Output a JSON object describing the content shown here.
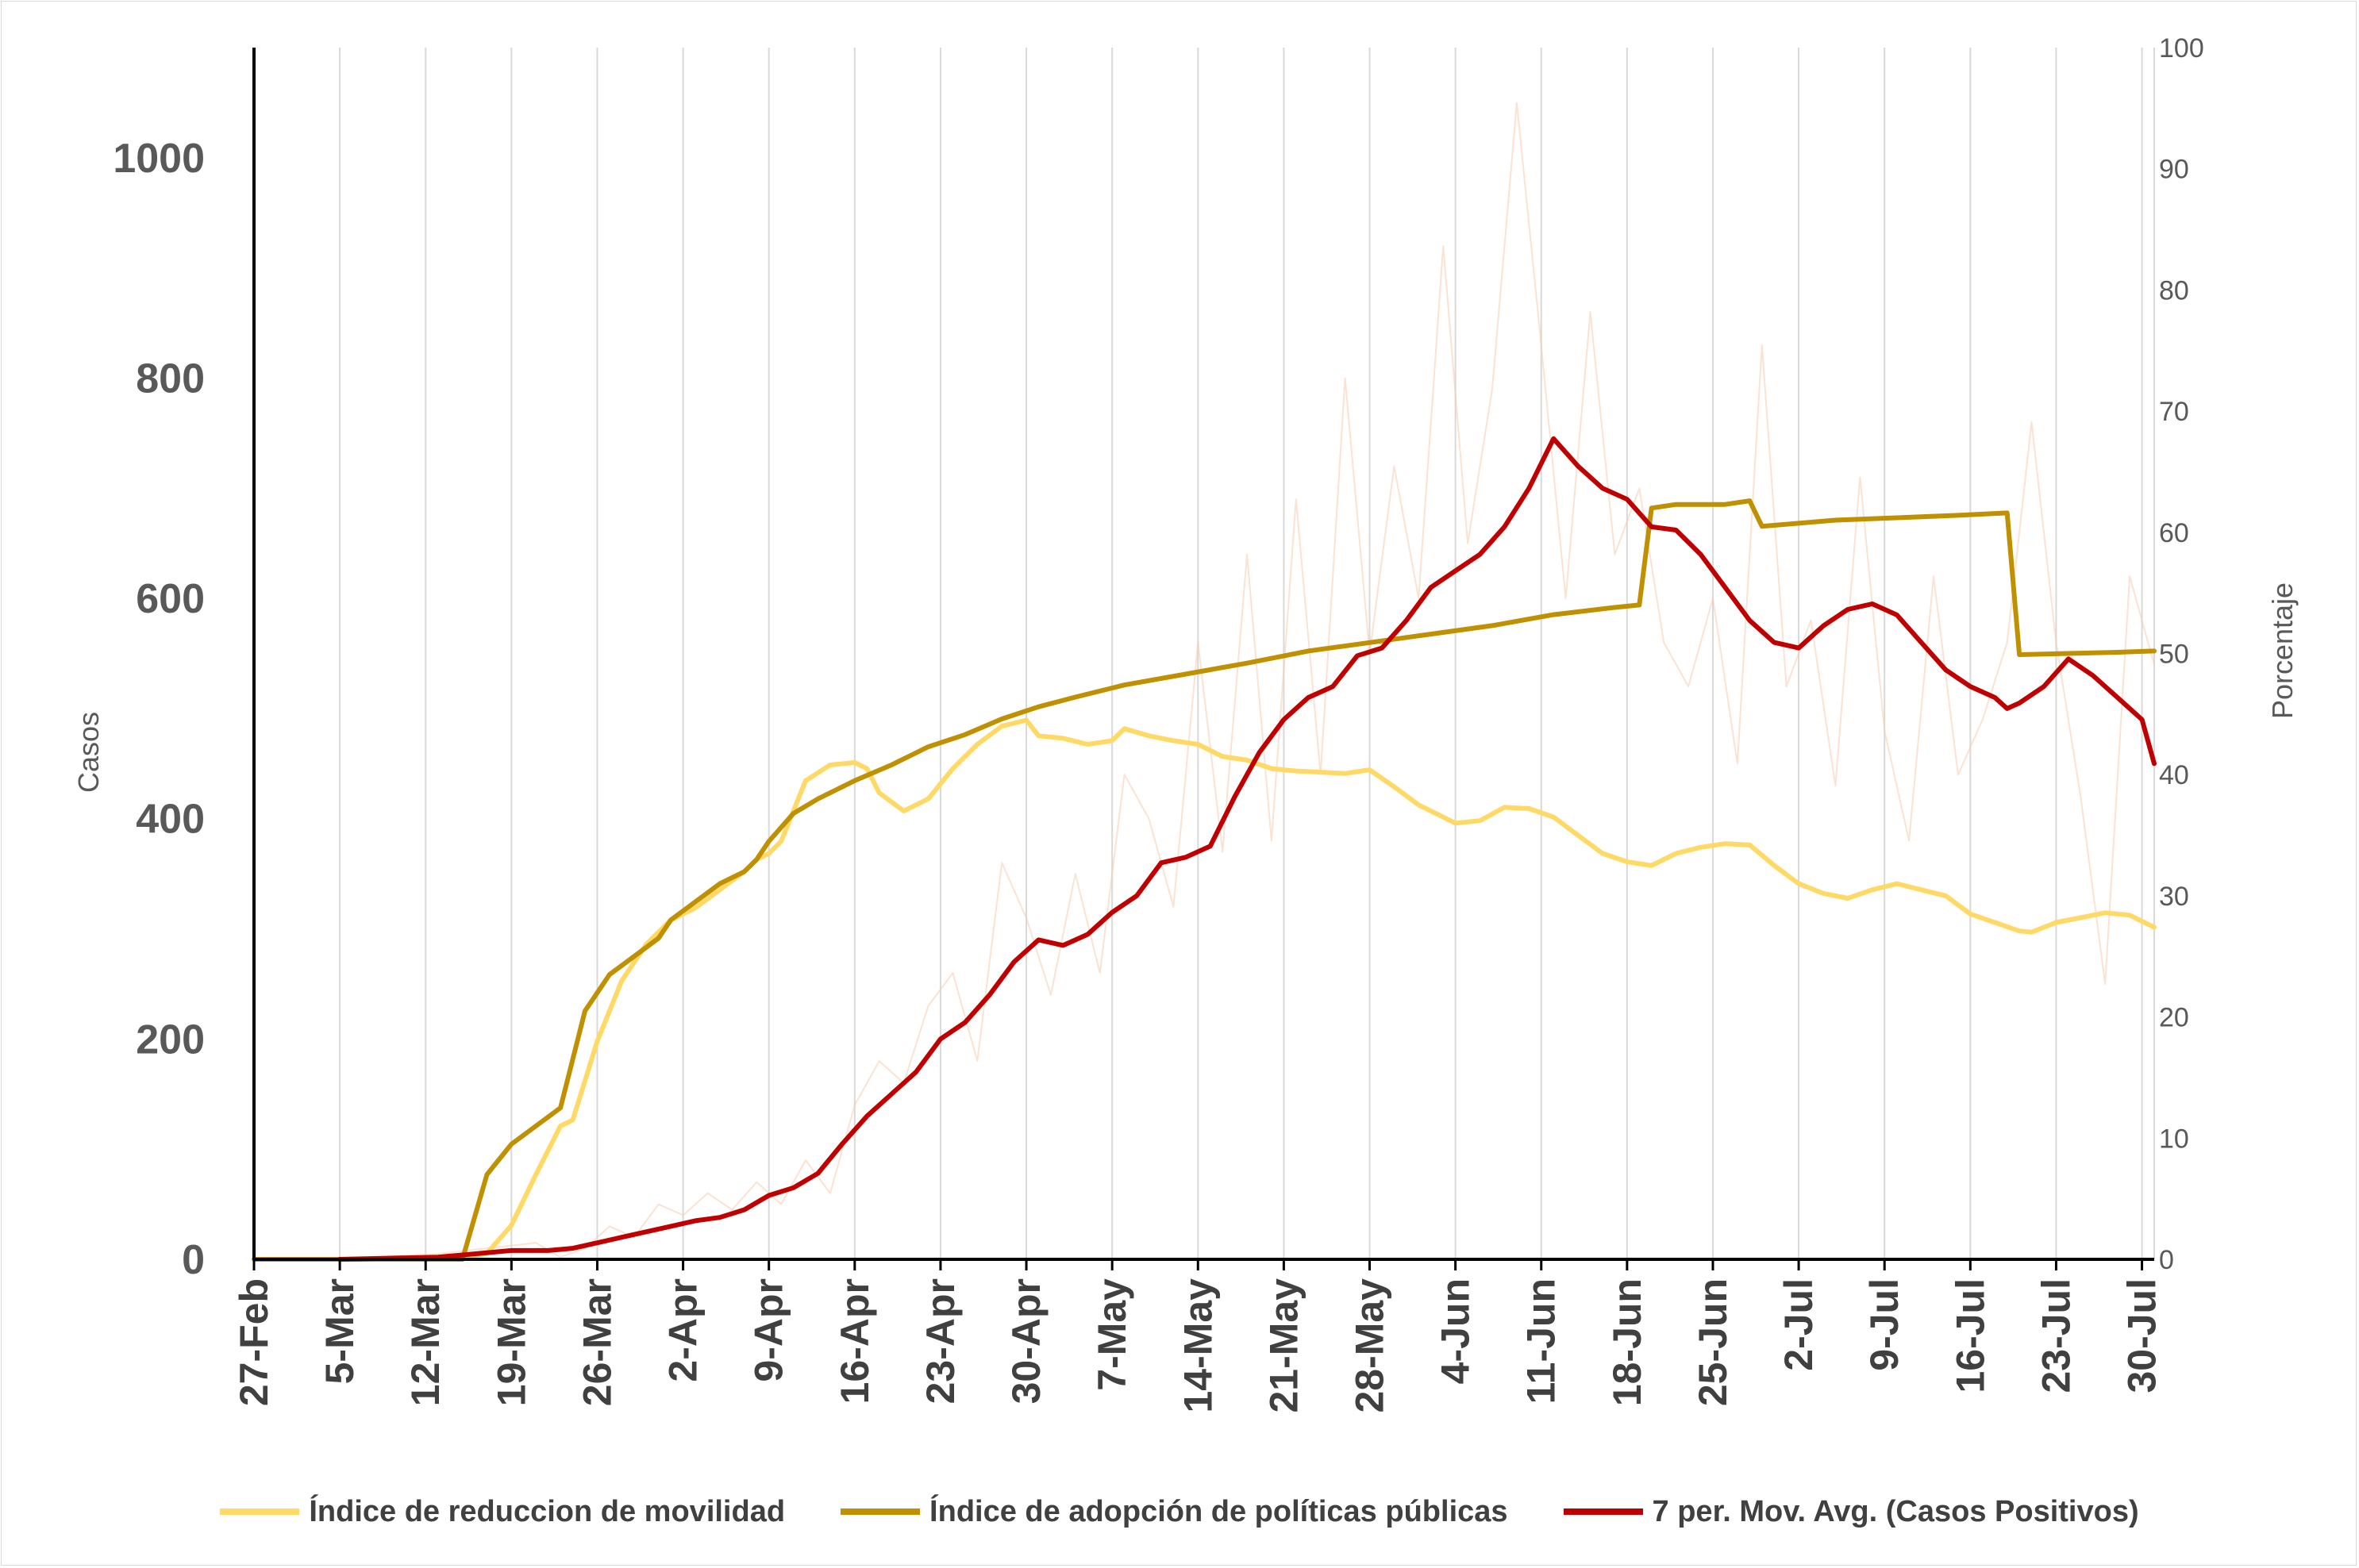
{
  "chart_data": {
    "type": "line",
    "title": "",
    "y_left": {
      "label": "Casos",
      "ticks": [
        "0",
        "200",
        "400",
        "600",
        "800",
        "1000"
      ],
      "range": [
        0,
        1100
      ]
    },
    "y_right": {
      "label": "Porcentaje",
      "ticks": [
        "0",
        "10",
        "20",
        "30",
        "40",
        "50",
        "60",
        "70",
        "80",
        "90",
        "100"
      ],
      "range": [
        0,
        100
      ]
    },
    "x": {
      "ticks": [
        "27-Feb",
        "5-Mar",
        "12-Mar",
        "19-Mar",
        "26-Mar",
        "2-Apr",
        "9-Apr",
        "16-Apr",
        "23-Apr",
        "30-Apr",
        "7-May",
        "14-May",
        "21-May",
        "28-May",
        "4-Jun",
        "11-Jun",
        "18-Jun",
        "25-Jun",
        "2-Jul",
        "9-Jul",
        "16-Jul",
        "23-Jul",
        "30-Jul"
      ],
      "range": [
        "2020-02-27",
        "2020-07-31"
      ]
    },
    "gridlines": "vertical",
    "legend_position": "bottom",
    "series": [
      {
        "name": "Índice de reduccion de movilidad",
        "axis": "right",
        "color": "#ffd966",
        "points": [
          [
            "2020-03-14",
            0
          ],
          [
            "2020-03-17",
            0.5
          ],
          [
            "2020-03-19",
            2.8
          ],
          [
            "2020-03-21",
            7
          ],
          [
            "2020-03-23",
            11
          ],
          [
            "2020-03-24",
            11.5
          ],
          [
            "2020-03-26",
            18
          ],
          [
            "2020-03-28",
            23
          ],
          [
            "2020-03-30",
            26
          ],
          [
            "2020-04-01",
            28
          ],
          [
            "2020-04-03",
            29
          ],
          [
            "2020-04-05",
            30.5
          ],
          [
            "2020-04-07",
            32
          ],
          [
            "2020-04-08",
            33
          ],
          [
            "2020-04-09",
            33.5
          ],
          [
            "2020-04-10",
            34.5
          ],
          [
            "2020-04-11",
            37
          ],
          [
            "2020-04-12",
            39.5
          ],
          [
            "2020-04-14",
            40.8
          ],
          [
            "2020-04-16",
            41
          ],
          [
            "2020-04-17",
            40.5
          ],
          [
            "2020-04-18",
            38.5
          ],
          [
            "2020-04-20",
            37
          ],
          [
            "2020-04-22",
            38
          ],
          [
            "2020-04-24",
            40.5
          ],
          [
            "2020-04-26",
            42.5
          ],
          [
            "2020-04-28",
            44
          ],
          [
            "2020-04-30",
            44.5
          ],
          [
            "2020-05-01",
            43.2
          ],
          [
            "2020-05-03",
            43
          ],
          [
            "2020-05-05",
            42.5
          ],
          [
            "2020-05-07",
            42.8
          ],
          [
            "2020-05-08",
            43.8
          ],
          [
            "2020-05-10",
            43.2
          ],
          [
            "2020-05-12",
            42.8
          ],
          [
            "2020-05-14",
            42.5
          ],
          [
            "2020-05-16",
            41.5
          ],
          [
            "2020-05-18",
            41.2
          ],
          [
            "2020-05-20",
            40.5
          ],
          [
            "2020-05-22",
            40.3
          ],
          [
            "2020-05-24",
            40.2
          ],
          [
            "2020-05-26",
            40.1
          ],
          [
            "2020-05-28",
            40.4
          ],
          [
            "2020-05-30",
            39
          ],
          [
            "2020-06-01",
            37.5
          ],
          [
            "2020-06-04",
            36
          ],
          [
            "2020-06-06",
            36.2
          ],
          [
            "2020-06-08",
            37.3
          ],
          [
            "2020-06-10",
            37.2
          ],
          [
            "2020-06-12",
            36.5
          ],
          [
            "2020-06-14",
            35
          ],
          [
            "2020-06-16",
            33.5
          ],
          [
            "2020-06-18",
            32.8
          ],
          [
            "2020-06-20",
            32.5
          ],
          [
            "2020-06-22",
            33.5
          ],
          [
            "2020-06-24",
            34
          ],
          [
            "2020-06-26",
            34.3
          ],
          [
            "2020-06-28",
            34.2
          ],
          [
            "2020-06-30",
            32.5
          ],
          [
            "2020-07-02",
            31
          ],
          [
            "2020-07-04",
            30.2
          ],
          [
            "2020-07-06",
            29.8
          ],
          [
            "2020-07-08",
            30.5
          ],
          [
            "2020-07-10",
            31
          ],
          [
            "2020-07-12",
            30.5
          ],
          [
            "2020-07-14",
            30
          ],
          [
            "2020-07-16",
            28.5
          ],
          [
            "2020-07-18",
            27.8
          ],
          [
            "2020-07-20",
            27.1
          ],
          [
            "2020-07-21",
            27.0
          ],
          [
            "2020-07-23",
            27.8
          ],
          [
            "2020-07-25",
            28.2
          ],
          [
            "2020-07-27",
            28.6
          ],
          [
            "2020-07-29",
            28.4
          ],
          [
            "2020-07-31",
            27.4
          ]
        ]
      },
      {
        "name": "Índice de adopción de políticas públicas",
        "axis": "right",
        "color": "#bf9000",
        "points": [
          [
            "2020-02-27",
            0
          ],
          [
            "2020-03-15",
            0
          ],
          [
            "2020-03-17",
            7
          ],
          [
            "2020-03-19",
            9.5
          ],
          [
            "2020-03-21",
            11
          ],
          [
            "2020-03-23",
            12.5
          ],
          [
            "2020-03-25",
            20.5
          ],
          [
            "2020-03-27",
            23.5
          ],
          [
            "2020-03-29",
            25
          ],
          [
            "2020-03-31",
            26.5
          ],
          [
            "2020-04-01",
            28
          ],
          [
            "2020-04-03",
            29.5
          ],
          [
            "2020-04-05",
            31
          ],
          [
            "2020-04-07",
            32
          ],
          [
            "2020-04-08",
            33
          ],
          [
            "2020-04-09",
            34.5
          ],
          [
            "2020-04-11",
            36.8
          ],
          [
            "2020-04-13",
            38
          ],
          [
            "2020-04-16",
            39.5
          ],
          [
            "2020-04-19",
            40.8
          ],
          [
            "2020-04-22",
            42.3
          ],
          [
            "2020-04-25",
            43.3
          ],
          [
            "2020-04-28",
            44.6
          ],
          [
            "2020-05-01",
            45.6
          ],
          [
            "2020-05-04",
            46.4
          ],
          [
            "2020-05-08",
            47.4
          ],
          [
            "2020-05-13",
            48.3
          ],
          [
            "2020-05-18",
            49.2
          ],
          [
            "2020-05-23",
            50.2
          ],
          [
            "2020-05-28",
            50.9
          ],
          [
            "2020-06-02",
            51.6
          ],
          [
            "2020-06-07",
            52.3
          ],
          [
            "2020-06-12",
            53.2
          ],
          [
            "2020-06-17",
            53.8
          ],
          [
            "2020-06-19",
            54.0
          ],
          [
            "2020-06-20",
            62.0
          ],
          [
            "2020-06-22",
            62.3
          ],
          [
            "2020-06-26",
            62.3
          ],
          [
            "2020-06-28",
            62.6
          ],
          [
            "2020-06-29",
            60.5
          ],
          [
            "2020-07-05",
            61.0
          ],
          [
            "2020-07-10",
            61.2
          ],
          [
            "2020-07-15",
            61.4
          ],
          [
            "2020-07-19",
            61.6
          ],
          [
            "2020-07-20",
            49.9
          ],
          [
            "2020-07-24",
            50.0
          ],
          [
            "2020-07-28",
            50.1
          ],
          [
            "2020-07-31",
            50.2
          ]
        ]
      },
      {
        "name": "7 per. Mov. Avg. (Casos Positivos)",
        "axis": "left",
        "color": "#c00000",
        "points": [
          [
            "2020-03-05",
            0
          ],
          [
            "2020-03-13",
            2
          ],
          [
            "2020-03-16",
            5
          ],
          [
            "2020-03-19",
            8
          ],
          [
            "2020-03-22",
            8
          ],
          [
            "2020-03-24",
            10
          ],
          [
            "2020-03-26",
            15
          ],
          [
            "2020-03-28",
            20
          ],
          [
            "2020-03-30",
            25
          ],
          [
            "2020-04-01",
            30
          ],
          [
            "2020-04-03",
            35
          ],
          [
            "2020-04-05",
            38
          ],
          [
            "2020-04-07",
            45
          ],
          [
            "2020-04-09",
            58
          ],
          [
            "2020-04-11",
            65
          ],
          [
            "2020-04-13",
            78
          ],
          [
            "2020-04-15",
            105
          ],
          [
            "2020-04-17",
            130
          ],
          [
            "2020-04-19",
            150
          ],
          [
            "2020-04-21",
            170
          ],
          [
            "2020-04-23",
            200
          ],
          [
            "2020-04-25",
            215
          ],
          [
            "2020-04-27",
            240
          ],
          [
            "2020-04-29",
            270
          ],
          [
            "2020-05-01",
            290
          ],
          [
            "2020-05-03",
            285
          ],
          [
            "2020-05-05",
            295
          ],
          [
            "2020-05-07",
            315
          ],
          [
            "2020-05-09",
            330
          ],
          [
            "2020-05-11",
            360
          ],
          [
            "2020-05-13",
            365
          ],
          [
            "2020-05-15",
            375
          ],
          [
            "2020-05-17",
            420
          ],
          [
            "2020-05-19",
            460
          ],
          [
            "2020-05-21",
            490
          ],
          [
            "2020-05-23",
            510
          ],
          [
            "2020-05-25",
            520
          ],
          [
            "2020-05-27",
            548
          ],
          [
            "2020-05-29",
            555
          ],
          [
            "2020-05-31",
            580
          ],
          [
            "2020-06-02",
            610
          ],
          [
            "2020-06-04",
            625
          ],
          [
            "2020-06-06",
            640
          ],
          [
            "2020-06-08",
            665
          ],
          [
            "2020-06-10",
            700
          ],
          [
            "2020-06-12",
            745
          ],
          [
            "2020-06-14",
            720
          ],
          [
            "2020-06-16",
            700
          ],
          [
            "2020-06-18",
            690
          ],
          [
            "2020-06-20",
            665
          ],
          [
            "2020-06-22",
            662
          ],
          [
            "2020-06-24",
            640
          ],
          [
            "2020-06-26",
            610
          ],
          [
            "2020-06-28",
            580
          ],
          [
            "2020-06-30",
            560
          ],
          [
            "2020-07-02",
            555
          ],
          [
            "2020-07-04",
            575
          ],
          [
            "2020-07-06",
            590
          ],
          [
            "2020-07-08",
            595
          ],
          [
            "2020-07-10",
            585
          ],
          [
            "2020-07-12",
            560
          ],
          [
            "2020-07-14",
            535
          ],
          [
            "2020-07-16",
            520
          ],
          [
            "2020-07-18",
            510
          ],
          [
            "2020-07-19",
            500
          ],
          [
            "2020-07-20",
            505
          ],
          [
            "2020-07-22",
            520
          ],
          [
            "2020-07-24",
            545
          ],
          [
            "2020-07-26",
            530
          ],
          [
            "2020-07-28",
            510
          ],
          [
            "2020-07-30",
            490
          ],
          [
            "2020-07-31",
            450
          ]
        ]
      },
      {
        "name": "",
        "axis": "left",
        "color": "#f8cbad",
        "style": "thin-faint",
        "points": [
          [
            "2020-03-05",
            0
          ],
          [
            "2020-03-13",
            5
          ],
          [
            "2020-03-17",
            10
          ],
          [
            "2020-03-21",
            15
          ],
          [
            "2020-03-23",
            2
          ],
          [
            "2020-03-25",
            10
          ],
          [
            "2020-03-27",
            30
          ],
          [
            "2020-03-29",
            20
          ],
          [
            "2020-03-31",
            50
          ],
          [
            "2020-04-02",
            40
          ],
          [
            "2020-04-04",
            60
          ],
          [
            "2020-04-06",
            45
          ],
          [
            "2020-04-08",
            70
          ],
          [
            "2020-04-10",
            50
          ],
          [
            "2020-04-12",
            90
          ],
          [
            "2020-04-14",
            60
          ],
          [
            "2020-04-16",
            140
          ],
          [
            "2020-04-18",
            180
          ],
          [
            "2020-04-20",
            160
          ],
          [
            "2020-04-22",
            230
          ],
          [
            "2020-04-24",
            260
          ],
          [
            "2020-04-26",
            180
          ],
          [
            "2020-04-28",
            360
          ],
          [
            "2020-04-30",
            310
          ],
          [
            "2020-05-02",
            240
          ],
          [
            "2020-05-04",
            350
          ],
          [
            "2020-05-06",
            260
          ],
          [
            "2020-05-08",
            440
          ],
          [
            "2020-05-10",
            400
          ],
          [
            "2020-05-12",
            320
          ],
          [
            "2020-05-14",
            560
          ],
          [
            "2020-05-16",
            370
          ],
          [
            "2020-05-18",
            640
          ],
          [
            "2020-05-20",
            380
          ],
          [
            "2020-05-22",
            690
          ],
          [
            "2020-05-24",
            440
          ],
          [
            "2020-05-26",
            800
          ],
          [
            "2020-05-28",
            550
          ],
          [
            "2020-05-30",
            720
          ],
          [
            "2020-06-01",
            600
          ],
          [
            "2020-06-03",
            920
          ],
          [
            "2020-06-05",
            650
          ],
          [
            "2020-06-07",
            790
          ],
          [
            "2020-06-09",
            1050
          ],
          [
            "2020-06-11",
            830
          ],
          [
            "2020-06-13",
            600
          ],
          [
            "2020-06-15",
            860
          ],
          [
            "2020-06-17",
            640
          ],
          [
            "2020-06-19",
            700
          ],
          [
            "2020-06-21",
            560
          ],
          [
            "2020-06-23",
            520
          ],
          [
            "2020-06-25",
            600
          ],
          [
            "2020-06-27",
            450
          ],
          [
            "2020-06-29",
            830
          ],
          [
            "2020-07-01",
            520
          ],
          [
            "2020-07-03",
            580
          ],
          [
            "2020-07-05",
            430
          ],
          [
            "2020-07-07",
            710
          ],
          [
            "2020-07-09",
            480
          ],
          [
            "2020-07-11",
            380
          ],
          [
            "2020-07-13",
            620
          ],
          [
            "2020-07-15",
            440
          ],
          [
            "2020-07-17",
            490
          ],
          [
            "2020-07-19",
            560
          ],
          [
            "2020-07-21",
            760
          ],
          [
            "2020-07-23",
            560
          ],
          [
            "2020-07-25",
            420
          ],
          [
            "2020-07-27",
            250
          ],
          [
            "2020-07-29",
            620
          ],
          [
            "2020-07-31",
            540
          ]
        ]
      }
    ]
  }
}
